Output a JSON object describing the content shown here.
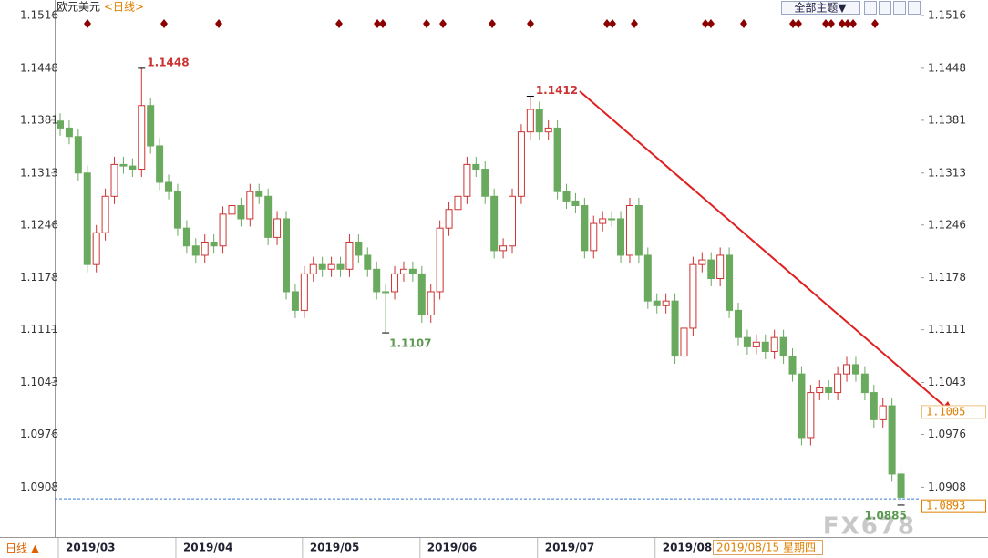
{
  "chart_data": {
    "type": "candlestick",
    "title": "欧元美元",
    "period_label": "<日线>",
    "theme_button": "全部主题▼",
    "bottom_label": "日线 ▲",
    "cursor_date": "2019/08/15 星期四",
    "watermark": "FX678",
    "categories": [
      "2019/03",
      null,
      null,
      null,
      null,
      null,
      null,
      null,
      null,
      null,
      null,
      null,
      null,
      "2019/04",
      null,
      null,
      null,
      null,
      null,
      null,
      null,
      null,
      null,
      null,
      null,
      null,
      null,
      "2019/05",
      null,
      null,
      null,
      null,
      null,
      null,
      null,
      null,
      null,
      null,
      null,
      null,
      "2019/06",
      null,
      null,
      null,
      null,
      null,
      null,
      null,
      null,
      null,
      null,
      null,
      null,
      "2019/07",
      null,
      null,
      null,
      null,
      null,
      null,
      null,
      null,
      null,
      null,
      null,
      null,
      "2019/08",
      null,
      null,
      null,
      null,
      null,
      null,
      null,
      null,
      null,
      null,
      null,
      null,
      null,
      null,
      null,
      null,
      null,
      null,
      null,
      null,
      null,
      null,
      null,
      null,
      null,
      null,
      null
    ],
    "open": [
      1.138,
      1.1371,
      1.136,
      1.1313,
      1.1195,
      1.1236,
      1.1283,
      1.1324,
      1.1322,
      1.1318,
      1.14,
      1.1348,
      1.1301,
      1.1289,
      1.1242,
      1.1219,
      1.1207,
      1.1224,
      1.1219,
      1.126,
      1.1271,
      1.1254,
      1.1289,
      1.1283,
      1.123,
      1.1254,
      1.116,
      1.1136,
      1.1183,
      1.1195,
      1.1189,
      1.1195,
      1.1189,
      1.1224,
      1.1207,
      1.1189,
      1.116,
      1.116,
      1.1183,
      1.1189,
      1.1183,
      1.113,
      1.116,
      1.1242,
      1.1266,
      1.1283,
      1.1324,
      1.1318,
      1.1283,
      1.1213,
      1.1219,
      1.1283,
      1.1366,
      1.1395,
      1.1366,
      1.1371,
      1.1289,
      1.1277,
      1.1271,
      1.1213,
      1.1248,
      1.1254,
      1.1254,
      1.1207,
      1.1271,
      1.1207,
      1.1148,
      1.1142,
      1.1148,
      1.1077,
      1.1113,
      1.1195,
      1.1201,
      1.1177,
      1.1207,
      1.1136,
      1.1101,
      1.1089,
      1.1095,
      1.1083,
      1.1101,
      1.1077,
      1.1054,
      1.0972,
      1.103,
      1.1036,
      1.103,
      1.1054,
      1.1066,
      1.1054,
      1.103,
      1.0995,
      1.1013,
      1.0925
    ],
    "high": [
      1.139,
      1.1381,
      1.137,
      1.1323,
      1.1246,
      1.1293,
      1.1334,
      1.1334,
      1.1332,
      1.1448,
      1.141,
      1.1358,
      1.1311,
      1.1299,
      1.1252,
      1.1229,
      1.1234,
      1.1234,
      1.127,
      1.1281,
      1.1281,
      1.1299,
      1.1299,
      1.1293,
      1.1264,
      1.1264,
      1.117,
      1.1193,
      1.1205,
      1.1205,
      1.1205,
      1.1205,
      1.1234,
      1.1234,
      1.1217,
      1.1199,
      1.117,
      1.1193,
      1.1199,
      1.1199,
      1.1193,
      1.117,
      1.1252,
      1.1276,
      1.1293,
      1.1334,
      1.1334,
      1.1328,
      1.1293,
      1.1229,
      1.1293,
      1.1376,
      1.1412,
      1.1405,
      1.1381,
      1.1381,
      1.1299,
      1.1287,
      1.1281,
      1.1258,
      1.1264,
      1.1264,
      1.1264,
      1.1281,
      1.1281,
      1.1217,
      1.1158,
      1.1158,
      1.1158,
      1.1123,
      1.1205,
      1.1211,
      1.1211,
      1.1217,
      1.1217,
      1.1146,
      1.1111,
      1.1105,
      1.1105,
      1.1111,
      1.1111,
      1.1087,
      1.1064,
      1.104,
      1.1046,
      1.1046,
      1.1064,
      1.1076,
      1.1076,
      1.1064,
      1.104,
      1.1023,
      1.1023,
      1.0935
    ],
    "low": [
      1.1361,
      1.135,
      1.1303,
      1.1185,
      1.1185,
      1.1226,
      1.1273,
      1.1312,
      1.1308,
      1.1308,
      1.1338,
      1.1291,
      1.1279,
      1.1232,
      1.1209,
      1.1197,
      1.1197,
      1.1209,
      1.1209,
      1.125,
      1.1244,
      1.1244,
      1.1273,
      1.122,
      1.122,
      1.115,
      1.1126,
      1.1126,
      1.1173,
      1.1179,
      1.1179,
      1.1179,
      1.1179,
      1.1197,
      1.1179,
      1.115,
      1.1107,
      1.115,
      1.1173,
      1.1173,
      1.112,
      1.112,
      1.115,
      1.1232,
      1.1256,
      1.1273,
      1.1308,
      1.1273,
      1.1203,
      1.1203,
      1.1209,
      1.1273,
      1.1356,
      1.1356,
      1.1356,
      1.1279,
      1.1267,
      1.1261,
      1.1203,
      1.1203,
      1.1238,
      1.1244,
      1.1197,
      1.1197,
      1.1197,
      1.1138,
      1.1132,
      1.1132,
      1.1067,
      1.1067,
      1.1103,
      1.1185,
      1.1167,
      1.1167,
      1.1126,
      1.1091,
      1.1079,
      1.1079,
      1.1073,
      1.1073,
      1.1067,
      1.1044,
      1.0962,
      1.0962,
      1.102,
      1.102,
      1.102,
      1.1044,
      1.1044,
      1.102,
      1.0985,
      1.0985,
      1.0915,
      1.0885
    ],
    "close": [
      1.1371,
      1.136,
      1.1313,
      1.1195,
      1.1236,
      1.1283,
      1.1324,
      1.1322,
      1.1318,
      1.14,
      1.1348,
      1.1301,
      1.1289,
      1.1242,
      1.1219,
      1.1207,
      1.1224,
      1.1219,
      1.126,
      1.1271,
      1.1254,
      1.1289,
      1.1283,
      1.123,
      1.1254,
      1.116,
      1.1136,
      1.1183,
      1.1195,
      1.1189,
      1.1195,
      1.1189,
      1.1224,
      1.1207,
      1.1189,
      1.116,
      1.116,
      1.1183,
      1.1189,
      1.1183,
      1.113,
      1.116,
      1.1242,
      1.1266,
      1.1283,
      1.1324,
      1.1318,
      1.1283,
      1.1213,
      1.1219,
      1.1283,
      1.1366,
      1.1395,
      1.1366,
      1.1371,
      1.1289,
      1.1277,
      1.1271,
      1.1213,
      1.1248,
      1.1254,
      1.1254,
      1.1207,
      1.1271,
      1.1207,
      1.1148,
      1.1142,
      1.1148,
      1.1077,
      1.1113,
      1.1195,
      1.1201,
      1.1177,
      1.1207,
      1.1136,
      1.1101,
      1.1089,
      1.1095,
      1.1083,
      1.1101,
      1.1077,
      1.1054,
      1.0972,
      1.103,
      1.1036,
      1.103,
      1.1054,
      1.1066,
      1.1054,
      1.103,
      1.0995,
      1.1013,
      1.0925,
      1.0895
    ],
    "up_color": "#cc3333",
    "down_color": "#6aaa5f",
    "ylim": [
      1.0845,
      1.1536
    ],
    "yticks": [
      1.1516,
      1.1448,
      1.1381,
      1.1313,
      1.1246,
      1.1178,
      1.1111,
      1.1043,
      1.0976,
      1.0908
    ],
    "extreme_labels": [
      {
        "path": "high",
        "index": 9,
        "color": "#cc3333"
      },
      {
        "path": "high",
        "index": 52,
        "color": "#cc3333"
      },
      {
        "path": "low",
        "index": 36,
        "color": "#5a9a4f"
      },
      {
        "path": "low",
        "index": 93,
        "color": "#5a9a4f"
      }
    ],
    "target_price": {
      "value": 1.1005,
      "color": "#e08000"
    },
    "current_price": {
      "value": 1.0893,
      "color": "#e08000"
    }
  }
}
